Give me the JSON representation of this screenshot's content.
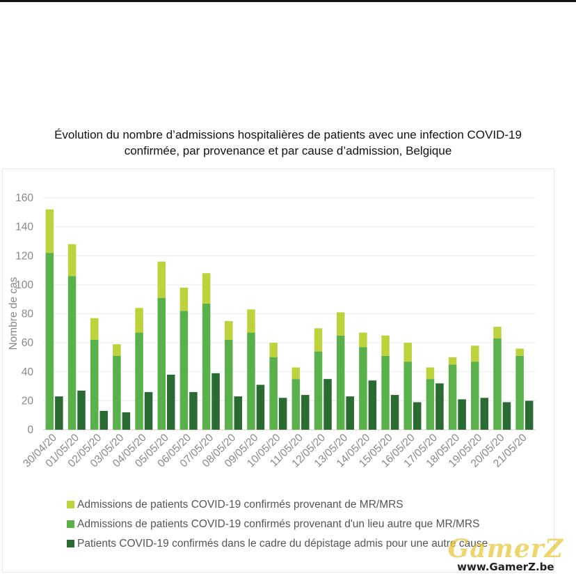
{
  "chart_data": {
    "type": "bar",
    "stacked_groups": [
      [
        "mr_mrs",
        "autre"
      ],
      [
        "depistage"
      ]
    ],
    "title_line1": "Évolution du nombre d’admissions hospitalières de patients avec une infection COVID-19",
    "title_line2": "confirmée, par provenance et par cause d’admission, Belgique",
    "ylabel": "Nombre de cas",
    "ylim": [
      0,
      160
    ],
    "yticks": [
      "0",
      "20",
      "40",
      "60",
      "80",
      "100",
      "120",
      "140",
      "160"
    ],
    "grid": true,
    "legend_position": "bottom",
    "categories": [
      "30/04/20",
      "01/05/20",
      "02/05/20",
      "03/05/20",
      "04/05/20",
      "05/05/20",
      "06/05/20",
      "07/05/20",
      "08/05/20",
      "09/05/20",
      "10/05/20",
      "11/05/20",
      "12/05/20",
      "13/05/20",
      "14/05/20",
      "15/05/20",
      "16/05/20",
      "17/05/20",
      "18/05/20",
      "19/05/20",
      "20/05/20",
      "21/05/20"
    ],
    "series": [
      {
        "id": "mr_mrs",
        "name": "Admissions de patients COVID-19 confirmés provenant de MR/MRS",
        "color": "#bdd23b",
        "values": [
          30,
          22,
          15,
          8,
          17,
          25,
          16,
          21,
          13,
          16,
          10,
          8,
          16,
          16,
          10,
          14,
          13,
          8,
          5,
          11,
          8,
          5
        ]
      },
      {
        "id": "autre",
        "name": "Admissions de patients COVID-19 confirmés provenant d'un lieu autre que MR/MRS",
        "color": "#5ab04b",
        "values": [
          122,
          106,
          62,
          51,
          67,
          91,
          82,
          87,
          62,
          67,
          50,
          35,
          54,
          65,
          57,
          51,
          47,
          35,
          45,
          47,
          63,
          51
        ]
      },
      {
        "id": "depistage",
        "name": "Patients COVID-19 confirmés dans le cadre du dépistage admis pour une autre cause",
        "color": "#2a6b34",
        "values": [
          23,
          27,
          13,
          12,
          26,
          38,
          26,
          39,
          23,
          31,
          22,
          24,
          35,
          23,
          34,
          24,
          19,
          32,
          21,
          22,
          19,
          20
        ]
      }
    ]
  },
  "watermark": {
    "logo": "GamerZ",
    "url": "www.GamerZ.be"
  }
}
